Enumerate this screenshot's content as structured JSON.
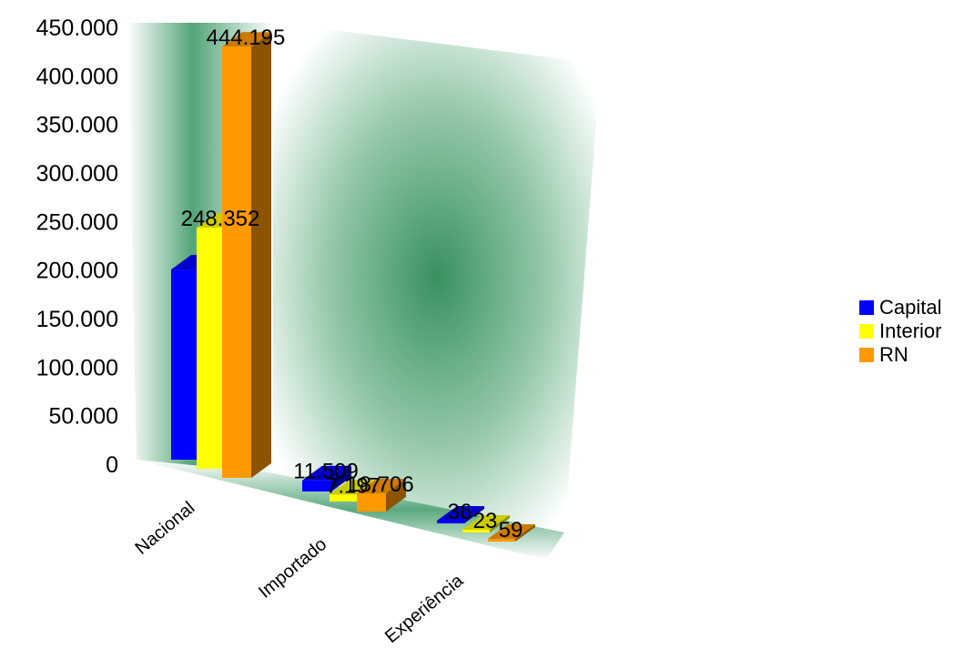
{
  "chart_data": {
    "type": "bar",
    "categories": [
      "Nacional",
      "Importado",
      "Experiência"
    ],
    "series": [
      {
        "name": "Capital",
        "values": [
          195843,
          11509,
          36
        ],
        "color": "#0000ff"
      },
      {
        "name": "Interior",
        "values": [
          248352,
          7197,
          23
        ],
        "color": "#ffff00"
      },
      {
        "name": "RN",
        "values": [
          444195,
          18706,
          59
        ],
        "color": "#ff9900"
      }
    ],
    "data_labels": {
      "Nacional": [
        "",
        "248.352",
        "444.195"
      ],
      "Importado": [
        "11.509",
        "7.197",
        "18.706"
      ],
      "Experiência": [
        "36",
        "23",
        "59"
      ]
    },
    "yticks": [
      "0",
      "50.000",
      "100.000",
      "150.000",
      "200.000",
      "250.000",
      "300.000",
      "350.000",
      "400.000",
      "450.000"
    ],
    "ylim": [
      0,
      450000
    ],
    "legend_position": "right",
    "style": "3d-clustered-column",
    "background": "radial-green-gradient"
  }
}
